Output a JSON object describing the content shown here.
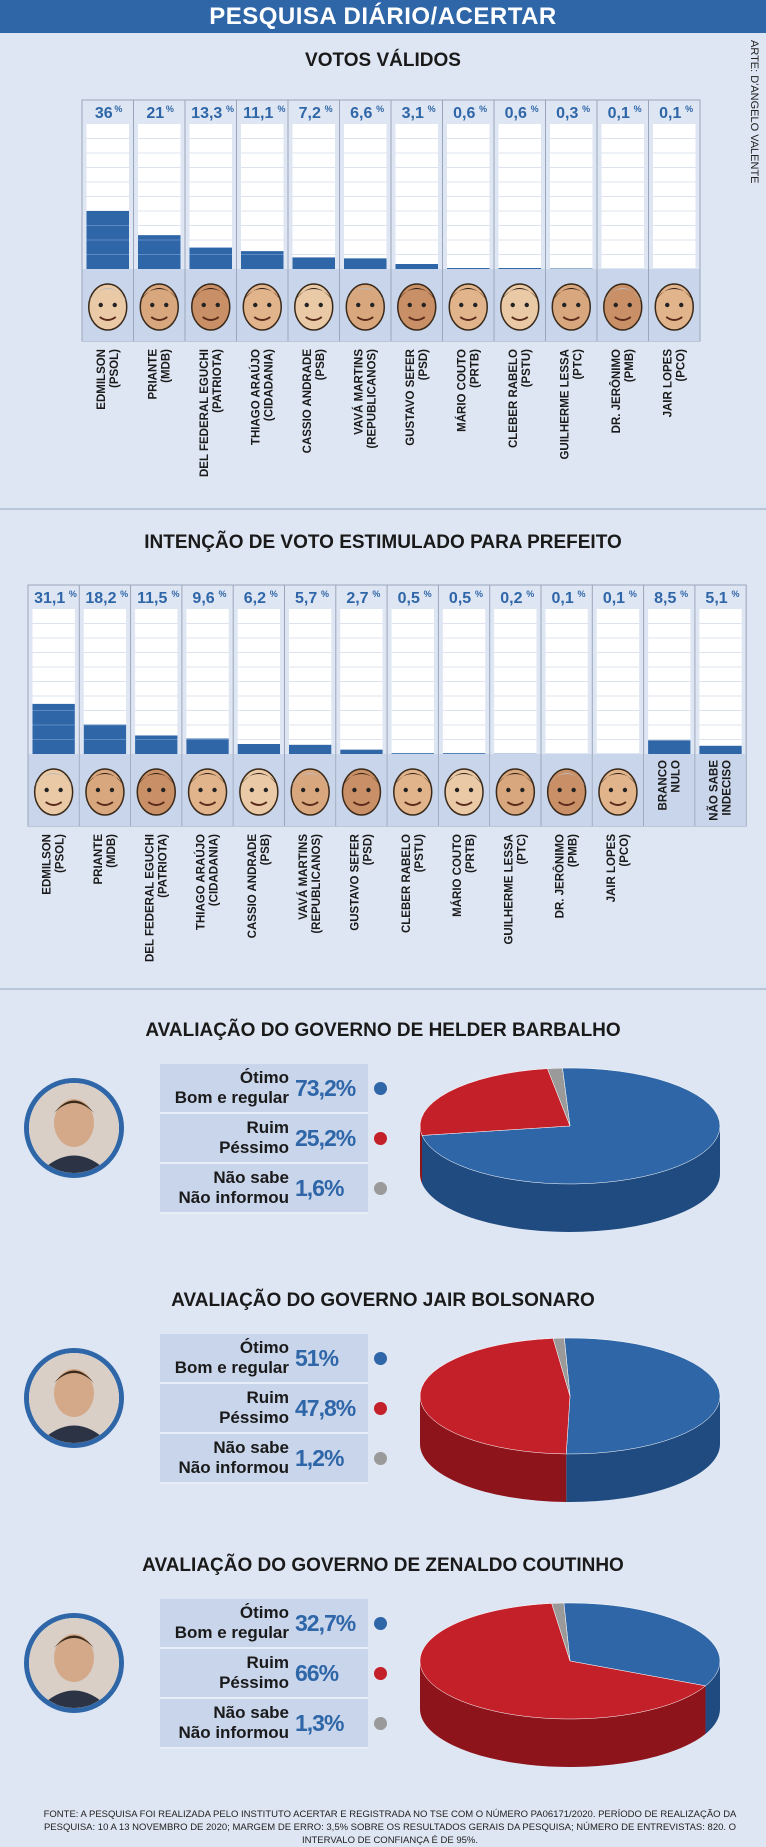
{
  "header": {
    "title": "PESQUISA DIÁRIO/ACERTAR",
    "credit": "ARTE: D'ANGELO VALENTE"
  },
  "colors": {
    "blue": "#2e66a8",
    "red": "#c4202a",
    "gray": "#9a9a9a"
  },
  "chart_data": [
    {
      "type": "bar",
      "title": "VOTOS VÁLIDOS",
      "unit": "%",
      "categories": [
        "EDMILSON (PSOL)",
        "PRIANTE (MDB)",
        "DEL FEDERAL EGUCHI (PATRIOTA)",
        "THIAGO ARAÚJO (CIDADANIA)",
        "CASSIO ANDRADE (PSB)",
        "VAVÁ MARTINS (REPUBLICANOS)",
        "GUSTAVO SEFER (PSD)",
        "MÁRIO COUTO (PRTB)",
        "CLEBER RABELO (PSTU)",
        "GUILHERME LESSA (PTC)",
        "DR. JERÔNIMO (PMB)",
        "JAIR LOPES (PCO)"
      ],
      "labels": [
        [
          "EDMILSON",
          "(PSOL)"
        ],
        [
          "PRIANTE",
          "(MDB)"
        ],
        [
          "DEL FEDERAL EGUCHI",
          "(PATRIOTA)"
        ],
        [
          "THIAGO ARAÚJO",
          "(CIDADANIA)"
        ],
        [
          "CASSIO ANDRADE",
          "(PSB)"
        ],
        [
          "VAVÁ MARTINS",
          "(REPUBLICANOS)"
        ],
        [
          "GUSTAVO SEFER",
          "(PSD)"
        ],
        [
          "MÁRIO COUTO",
          "(PRTB)"
        ],
        [
          "CLEBER RABELO",
          "(PSTU)"
        ],
        [
          "GUILHERME LESSA",
          "(PTC)"
        ],
        [
          "DR. JERÔNIMO",
          "(PMB)"
        ],
        [
          "JAIR LOPES",
          "(PCO)"
        ]
      ],
      "values": [
        36,
        21,
        13.3,
        11.1,
        7.2,
        6.6,
        3.1,
        0.6,
        0.6,
        0.3,
        0.1,
        0.1
      ],
      "value_labels": [
        "36",
        "21",
        "13,3",
        "11,1",
        "7,2",
        "6,6",
        "3,1",
        "0,6",
        "0,6",
        "0,3",
        "0,1",
        "0,1"
      ],
      "ylim": [
        0,
        100
      ]
    },
    {
      "type": "bar",
      "title": "INTENÇÃO DE VOTO ESTIMULADO PARA PREFEITO",
      "unit": "%",
      "categories": [
        "EDMILSON (PSOL)",
        "PRIANTE (MDB)",
        "DEL FEDERAL EGUCHI (PATRIOTA)",
        "THIAGO ARAÚJO (CIDADANIA)",
        "CASSIO ANDRADE (PSB)",
        "VAVÁ MARTINS (REPUBLICANOS)",
        "GUSTAVO SEFER (PSD)",
        "CLEBER RABELO (PSTU)",
        "MÁRIO COUTO (PRTB)",
        "GUILHERME LESSA (PTC)",
        "DR. JERÔNIMO (PMB)",
        "JAIR LOPES (PCO)",
        "BRANCO NULO",
        "NÃO SABE INDECISO"
      ],
      "labels": [
        [
          "EDMILSON",
          "(PSOL)"
        ],
        [
          "PRIANTE",
          "(MDB)"
        ],
        [
          "DEL FEDERAL EGUCHI",
          "(PATRIOTA)"
        ],
        [
          "THIAGO ARAÚJO",
          "(CIDADANIA)"
        ],
        [
          "CASSIO ANDRADE",
          "(PSB)"
        ],
        [
          "VAVÁ MARTINS",
          "(REPUBLICANOS)"
        ],
        [
          "GUSTAVO SEFER",
          "(PSD)"
        ],
        [
          "CLEBER RABELO",
          "(PSTU)"
        ],
        [
          "MÁRIO COUTO",
          "(PRTB)"
        ],
        [
          "GUILHERME LESSA",
          "(PTC)"
        ],
        [
          "DR. JERÔNIMO",
          "(PMB)"
        ],
        [
          "JAIR LOPES",
          "(PCO)"
        ],
        [
          "BRANCO",
          "NULO"
        ],
        [
          "NÃO SABE",
          "INDECISO"
        ]
      ],
      "values": [
        31.1,
        18.2,
        11.5,
        9.6,
        6.2,
        5.7,
        2.7,
        0.5,
        0.5,
        0.2,
        0.1,
        0.1,
        8.5,
        5.1
      ],
      "value_labels": [
        "31,1",
        "18,2",
        "11,5",
        "9,6",
        "6,2",
        "5,7",
        "2,7",
        "0,5",
        "0,5",
        "0,2",
        "0,1",
        "0,1",
        "8,5",
        "5,1"
      ],
      "ylim": [
        0,
        100
      ]
    },
    {
      "type": "pie",
      "title": "AVALIAÇÃO DO GOVERNO DE HELDER BARBALHO",
      "categories": [
        "Ótimo Bom e regular",
        "Ruim Péssimo",
        "Não sabe Não informou"
      ],
      "labels": [
        [
          "Ótimo",
          "Bom e regular"
        ],
        [
          "Ruim",
          "Péssimo"
        ],
        [
          "Não sabe",
          "Não informou"
        ]
      ],
      "values": [
        73.2,
        25.2,
        1.6
      ],
      "value_labels": [
        "73,2%",
        "25,2%",
        "1,6%"
      ]
    },
    {
      "type": "pie",
      "title": "AVALIAÇÃO DO GOVERNO JAIR BOLSONARO",
      "categories": [
        "Ótimo Bom e regular",
        "Ruim Péssimo",
        "Não sabe Não informou"
      ],
      "labels": [
        [
          "Ótimo",
          "Bom e regular"
        ],
        [
          "Ruim",
          "Péssimo"
        ],
        [
          "Não sabe",
          "Não informou"
        ]
      ],
      "values": [
        51,
        47.8,
        1.2
      ],
      "value_labels": [
        "51%",
        "47,8%",
        "1,2%"
      ]
    },
    {
      "type": "pie",
      "title": "AVALIAÇÃO DO GOVERNO DE ZENALDO COUTINHO",
      "categories": [
        "Ótimo Bom e regular",
        "Ruim Péssimo",
        "Não sabe Não informou"
      ],
      "labels": [
        [
          "Ótimo",
          "Bom e regular"
        ],
        [
          "Ruim",
          "Péssimo"
        ],
        [
          "Não sabe",
          "Não informou"
        ]
      ],
      "values": [
        32.7,
        66,
        1.3
      ],
      "value_labels": [
        "32,7%",
        "66%",
        "1,3%"
      ]
    }
  ],
  "footer": {
    "text": "FONTE: A PESQUISA FOI REALIZADA PELO INSTITUTO ACERTAR E REGISTRADA NO TSE COM O NÚMERO PA06171/2020. PERÍODO DE REALIZAÇÃO DA PESQUISA: 10 A 13 NOVEMBRO DE 2020; MARGEM DE ERRO: 3,5% SOBRE OS RESULTADOS GERAIS DA PESQUISA; NÚMERO DE ENTREVISTAS: 820. O INTERVALO DE CONFIANÇA É DE 95%."
  }
}
